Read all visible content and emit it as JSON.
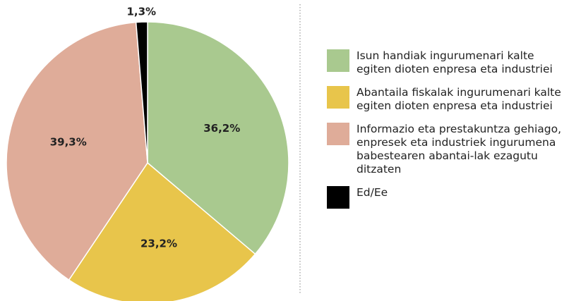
{
  "chart_data": {
    "type": "pie",
    "categories": [
      "Isun handiak ingurumenari kalte egiten dioten enpresa eta industriei",
      "Abantaila fiskalak ingurumenari kalte egiten dioten enpresa eta industriei",
      "Informazio eta prestakuntza gehiago, enpresek eta industriek ingurumena babestearen abantai-lak ezagutu ditzaten",
      "Ed/Ee"
    ],
    "values": [
      36.2,
      23.2,
      39.3,
      1.3
    ],
    "value_labels": [
      "36,2%",
      "23,2%",
      "39,3%",
      "1,3%"
    ],
    "colors": [
      "#a9c98f",
      "#e8c54b",
      "#dfac99",
      "#000000"
    ]
  }
}
